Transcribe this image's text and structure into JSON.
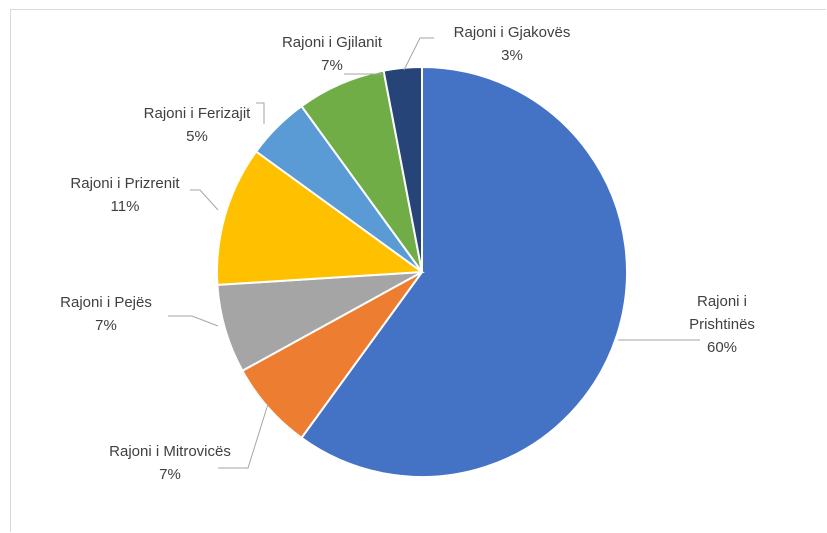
{
  "chart_data": {
    "type": "pie",
    "title": "",
    "legend": "none",
    "slices": [
      {
        "name_lines": [
          "Rajoni i",
          "Prishtinës"
        ],
        "label": "60%",
        "value": 60,
        "color": "#4472C4"
      },
      {
        "name_lines": [
          "Rajoni i Mitrovicës"
        ],
        "label": "7%",
        "value": 7,
        "color": "#ED7D31"
      },
      {
        "name_lines": [
          "Rajoni i Pejës"
        ],
        "label": "7%",
        "value": 7,
        "color": "#A5A5A5"
      },
      {
        "name_lines": [
          "Rajoni i Prizrenit"
        ],
        "label": "11%",
        "value": 11,
        "color": "#FFC000"
      },
      {
        "name_lines": [
          "Rajoni i Ferizajit"
        ],
        "label": "5%",
        "value": 5,
        "color": "#5B9BD5"
      },
      {
        "name_lines": [
          "Rajoni i Gjilanit"
        ],
        "label": "7%",
        "value": 7,
        "color": "#70AD47"
      },
      {
        "name_lines": [
          "Rajoni i Gjakovës"
        ],
        "label": "3%",
        "value": 3,
        "color": "#264478"
      }
    ]
  }
}
